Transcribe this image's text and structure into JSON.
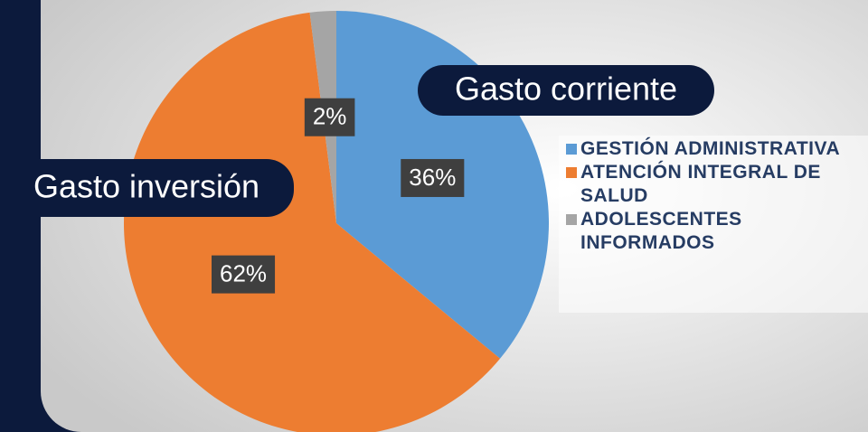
{
  "chart_data": {
    "type": "pie",
    "categories": [
      "GESTIÓN ADMINISTRATIVA",
      "ATENCIÓN INTEGRAL DE SALUD",
      "ADOLESCENTES INFORMADOS"
    ],
    "values": [
      36,
      62,
      2
    ],
    "value_labels": [
      "36%",
      "62%",
      "2%"
    ],
    "colors": [
      "#5b9bd5",
      "#ed7d31",
      "#a5a5a5"
    ],
    "annotations": [
      "Gasto corriente",
      "Gasto inversión"
    ],
    "legend": "right"
  }
}
